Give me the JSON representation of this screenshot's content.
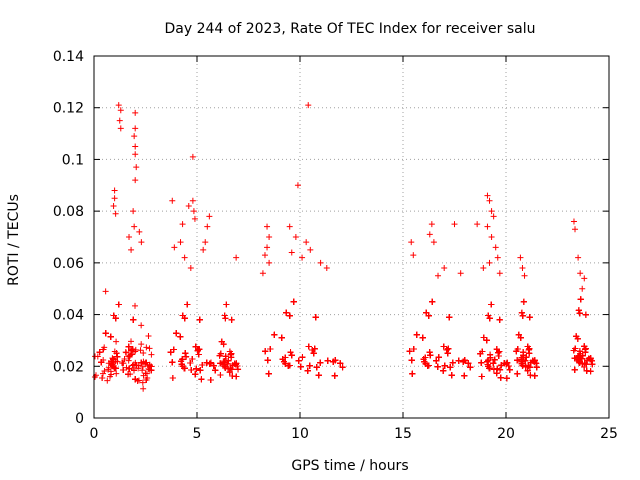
{
  "chart_data": {
    "type": "scatter",
    "title": "Day 244 of 2023, Rate Of TEC Index for receiver salu",
    "xlabel": "GPS time / hours",
    "ylabel": "ROTI / TECUs",
    "xlim": [
      0,
      25
    ],
    "ylim": [
      0,
      0.14
    ],
    "xticks": [
      0,
      5,
      10,
      15,
      20,
      25
    ],
    "xtick_labels": [
      "0",
      "5",
      "10",
      "15",
      "20",
      "25"
    ],
    "yticks": [
      0,
      0.02,
      0.04,
      0.06,
      0.08,
      0.1,
      0.12,
      0.14
    ],
    "ytick_labels": [
      "0",
      "0.02",
      "0.04",
      "0.06",
      "0.08",
      "0.1",
      "0.12",
      "0.14"
    ],
    "grid": true,
    "marker": "plus",
    "color": "#ff0000",
    "clusters": [
      {
        "x": [
          0.0,
          2.8
        ],
        "base": 0.02,
        "spread": 0.008,
        "n": 900
      },
      {
        "x": [
          3.5,
          5.9
        ],
        "base": 0.02,
        "spread": 0.008,
        "n": 700
      },
      {
        "x": [
          6.0,
          7.0
        ],
        "base": 0.02,
        "spread": 0.006,
        "n": 180
      },
      {
        "x": [
          7.9,
          12.1
        ],
        "base": 0.021,
        "spread": 0.007,
        "n": 1300
      },
      {
        "x": [
          15.0,
          18.3
        ],
        "base": 0.021,
        "spread": 0.007,
        "n": 1000
      },
      {
        "x": [
          18.6,
          20.2
        ],
        "base": 0.02,
        "spread": 0.007,
        "n": 450
      },
      {
        "x": [
          20.4,
          21.5
        ],
        "base": 0.021,
        "spread": 0.007,
        "n": 320
      },
      {
        "x": [
          23.2,
          24.2
        ],
        "base": 0.022,
        "spread": 0.006,
        "n": 300
      }
    ],
    "outliers": [
      {
        "x": 1.2,
        "y": 0.121
      },
      {
        "x": 1.3,
        "y": 0.119
      },
      {
        "x": 1.25,
        "y": 0.115
      },
      {
        "x": 1.3,
        "y": 0.112
      },
      {
        "x": 2.0,
        "y": 0.118
      },
      {
        "x": 2.0,
        "y": 0.112
      },
      {
        "x": 1.95,
        "y": 0.109
      },
      {
        "x": 2.0,
        "y": 0.105
      },
      {
        "x": 2.0,
        "y": 0.102
      },
      {
        "x": 2.05,
        "y": 0.097
      },
      {
        "x": 2.0,
        "y": 0.092
      },
      {
        "x": 1.0,
        "y": 0.088
      },
      {
        "x": 1.0,
        "y": 0.085
      },
      {
        "x": 0.95,
        "y": 0.082
      },
      {
        "x": 1.05,
        "y": 0.079
      },
      {
        "x": 1.9,
        "y": 0.08
      },
      {
        "x": 1.95,
        "y": 0.074
      },
      {
        "x": 1.7,
        "y": 0.07
      },
      {
        "x": 1.8,
        "y": 0.065
      },
      {
        "x": 2.2,
        "y": 0.072
      },
      {
        "x": 2.3,
        "y": 0.068
      },
      {
        "x": 4.8,
        "y": 0.101
      },
      {
        "x": 3.8,
        "y": 0.084
      },
      {
        "x": 4.6,
        "y": 0.082
      },
      {
        "x": 4.8,
        "y": 0.084
      },
      {
        "x": 4.85,
        "y": 0.08
      },
      {
        "x": 4.9,
        "y": 0.077
      },
      {
        "x": 5.6,
        "y": 0.078
      },
      {
        "x": 5.5,
        "y": 0.074
      },
      {
        "x": 5.4,
        "y": 0.068
      },
      {
        "x": 5.3,
        "y": 0.065
      },
      {
        "x": 4.3,
        "y": 0.075
      },
      {
        "x": 4.2,
        "y": 0.068
      },
      {
        "x": 3.9,
        "y": 0.066
      },
      {
        "x": 4.4,
        "y": 0.062
      },
      {
        "x": 6.9,
        "y": 0.062
      },
      {
        "x": 4.7,
        "y": 0.058
      },
      {
        "x": 10.4,
        "y": 0.121
      },
      {
        "x": 9.9,
        "y": 0.09
      },
      {
        "x": 8.4,
        "y": 0.074
      },
      {
        "x": 8.5,
        "y": 0.07
      },
      {
        "x": 8.4,
        "y": 0.066
      },
      {
        "x": 8.3,
        "y": 0.063
      },
      {
        "x": 8.5,
        "y": 0.06
      },
      {
        "x": 9.5,
        "y": 0.074
      },
      {
        "x": 9.8,
        "y": 0.07
      },
      {
        "x": 10.3,
        "y": 0.068
      },
      {
        "x": 10.5,
        "y": 0.065
      },
      {
        "x": 9.6,
        "y": 0.064
      },
      {
        "x": 10.1,
        "y": 0.062
      },
      {
        "x": 11.0,
        "y": 0.06
      },
      {
        "x": 11.3,
        "y": 0.058
      },
      {
        "x": 8.2,
        "y": 0.056
      },
      {
        "x": 15.4,
        "y": 0.068
      },
      {
        "x": 16.4,
        "y": 0.075
      },
      {
        "x": 16.3,
        "y": 0.071
      },
      {
        "x": 16.5,
        "y": 0.068
      },
      {
        "x": 17.5,
        "y": 0.075
      },
      {
        "x": 15.5,
        "y": 0.063
      },
      {
        "x": 17.0,
        "y": 0.058
      },
      {
        "x": 17.8,
        "y": 0.056
      },
      {
        "x": 16.7,
        "y": 0.055
      },
      {
        "x": 18.6,
        "y": 0.075
      },
      {
        "x": 19.1,
        "y": 0.086
      },
      {
        "x": 19.2,
        "y": 0.084
      },
      {
        "x": 19.3,
        "y": 0.08
      },
      {
        "x": 19.4,
        "y": 0.078
      },
      {
        "x": 19.1,
        "y": 0.074
      },
      {
        "x": 19.3,
        "y": 0.07
      },
      {
        "x": 19.5,
        "y": 0.066
      },
      {
        "x": 19.6,
        "y": 0.062
      },
      {
        "x": 19.2,
        "y": 0.06
      },
      {
        "x": 18.9,
        "y": 0.058
      },
      {
        "x": 19.7,
        "y": 0.056
      },
      {
        "x": 20.7,
        "y": 0.062
      },
      {
        "x": 20.8,
        "y": 0.058
      },
      {
        "x": 20.9,
        "y": 0.055
      },
      {
        "x": 23.3,
        "y": 0.076
      },
      {
        "x": 23.35,
        "y": 0.073
      },
      {
        "x": 23.5,
        "y": 0.062
      },
      {
        "x": 23.6,
        "y": 0.056
      },
      {
        "x": 23.8,
        "y": 0.054
      },
      {
        "x": 23.7,
        "y": 0.05
      }
    ]
  }
}
